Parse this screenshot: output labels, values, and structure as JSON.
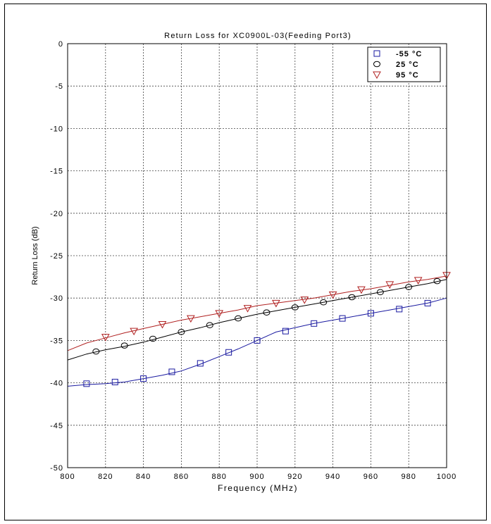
{
  "chart_data": {
    "type": "line",
    "title": "Return Loss for XC0900L-03(Feeding Port3)",
    "xlabel": "Frequency (MHz)",
    "ylabel": "Return Loss (dB)",
    "xlim": [
      800,
      1000
    ],
    "ylim": [
      -50,
      0
    ],
    "xticks": [
      800,
      820,
      840,
      860,
      880,
      900,
      920,
      940,
      960,
      980,
      1000
    ],
    "yticks": [
      0,
      -5,
      -10,
      -15,
      -20,
      -25,
      -30,
      -35,
      -40,
      -45,
      -50
    ],
    "grid": true,
    "legend_position": "top-right",
    "series": [
      {
        "name": "-55 °C",
        "marker": "square",
        "color": "#1a1aa0",
        "line": [
          [
            800,
            -40.4
          ],
          [
            810,
            -40.2
          ],
          [
            820,
            -40.1
          ],
          [
            830,
            -39.9
          ],
          [
            840,
            -39.5
          ],
          [
            850,
            -39.1
          ],
          [
            860,
            -38.6
          ],
          [
            870,
            -37.8
          ],
          [
            880,
            -36.9
          ],
          [
            890,
            -36.0
          ],
          [
            900,
            -35.0
          ],
          [
            910,
            -34.0
          ],
          [
            920,
            -33.5
          ],
          [
            930,
            -33.0
          ],
          [
            940,
            -32.6
          ],
          [
            950,
            -32.2
          ],
          [
            960,
            -31.8
          ],
          [
            970,
            -31.4
          ],
          [
            980,
            -31.0
          ],
          [
            990,
            -30.6
          ],
          [
            1000,
            -30.0
          ]
        ],
        "markers": [
          [
            810,
            -40.1
          ],
          [
            825,
            -39.9
          ],
          [
            840,
            -39.5
          ],
          [
            855,
            -38.7
          ],
          [
            870,
            -37.7
          ],
          [
            885,
            -36.4
          ],
          [
            900,
            -35.0
          ],
          [
            915,
            -33.9
          ],
          [
            930,
            -33.0
          ],
          [
            945,
            -32.4
          ],
          [
            960,
            -31.8
          ],
          [
            975,
            -31.3
          ],
          [
            990,
            -30.6
          ]
        ]
      },
      {
        "name": "25 °C",
        "marker": "circle",
        "color": "#000000",
        "line": [
          [
            800,
            -37.3
          ],
          [
            810,
            -36.6
          ],
          [
            820,
            -36.1
          ],
          [
            830,
            -35.7
          ],
          [
            840,
            -35.2
          ],
          [
            850,
            -34.6
          ],
          [
            860,
            -34.0
          ],
          [
            870,
            -33.5
          ],
          [
            880,
            -32.9
          ],
          [
            890,
            -32.4
          ],
          [
            900,
            -31.9
          ],
          [
            910,
            -31.5
          ],
          [
            920,
            -31.1
          ],
          [
            930,
            -30.7
          ],
          [
            940,
            -30.3
          ],
          [
            950,
            -29.9
          ],
          [
            960,
            -29.5
          ],
          [
            970,
            -29.1
          ],
          [
            980,
            -28.7
          ],
          [
            990,
            -28.3
          ],
          [
            1000,
            -27.8
          ]
        ],
        "markers": [
          [
            815,
            -36.3
          ],
          [
            830,
            -35.6
          ],
          [
            845,
            -34.8
          ],
          [
            860,
            -34.0
          ],
          [
            875,
            -33.2
          ],
          [
            890,
            -32.4
          ],
          [
            905,
            -31.7
          ],
          [
            920,
            -31.1
          ],
          [
            935,
            -30.5
          ],
          [
            950,
            -29.9
          ],
          [
            965,
            -29.3
          ],
          [
            980,
            -28.7
          ],
          [
            995,
            -28.0
          ]
        ]
      },
      {
        "name": "95 °C",
        "marker": "triangle-down",
        "color": "#b02020",
        "line": [
          [
            800,
            -36.2
          ],
          [
            810,
            -35.3
          ],
          [
            820,
            -34.7
          ],
          [
            830,
            -34.1
          ],
          [
            840,
            -33.6
          ],
          [
            850,
            -33.1
          ],
          [
            860,
            -32.6
          ],
          [
            870,
            -32.2
          ],
          [
            880,
            -31.8
          ],
          [
            890,
            -31.4
          ],
          [
            900,
            -30.9
          ],
          [
            910,
            -30.6
          ],
          [
            920,
            -30.3
          ],
          [
            930,
            -30.0
          ],
          [
            940,
            -29.6
          ],
          [
            950,
            -29.2
          ],
          [
            960,
            -28.9
          ],
          [
            970,
            -28.5
          ],
          [
            980,
            -28.1
          ],
          [
            990,
            -27.8
          ],
          [
            1000,
            -27.4
          ]
        ],
        "markers": [
          [
            820,
            -34.6
          ],
          [
            835,
            -33.9
          ],
          [
            850,
            -33.1
          ],
          [
            865,
            -32.4
          ],
          [
            880,
            -31.8
          ],
          [
            895,
            -31.2
          ],
          [
            910,
            -30.6
          ],
          [
            925,
            -30.2
          ],
          [
            940,
            -29.6
          ],
          [
            955,
            -29.0
          ],
          [
            970,
            -28.4
          ],
          [
            985,
            -27.9
          ],
          [
            1000,
            -27.3
          ]
        ]
      }
    ]
  },
  "colors": {
    "grid": "#444444",
    "axis": "#000000"
  }
}
